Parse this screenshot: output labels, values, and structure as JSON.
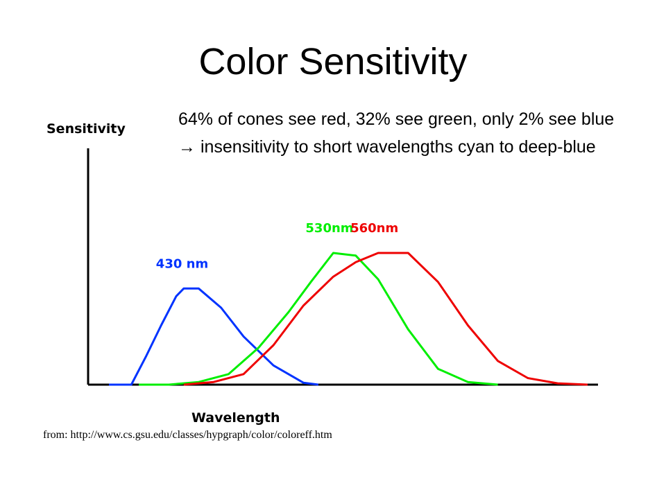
{
  "slide": {
    "title": "Color Sensitivity",
    "bullet_part1": "64% of cones see red, 32% see green, only 2% see blue ",
    "bullet_arrow": "→",
    "bullet_part2": " insensitivity to short wavelengths cyan to deep-blue",
    "source": "from: http://www.cs.gsu.edu/classes/hypgraph/color/coloreff.htm"
  },
  "chart_data": {
    "type": "line",
    "xlabel": "Wavelength",
    "ylabel": "Sensitivity",
    "series": [
      {
        "name": "430 nm",
        "color": "#0033ff",
        "x": [
          380,
          395,
          405,
          415,
          425,
          430,
          440,
          455,
          470,
          490,
          510,
          520
        ],
        "y": [
          0,
          0,
          0.3,
          0.62,
          0.92,
          1.0,
          1.0,
          0.8,
          0.5,
          0.2,
          0.02,
          0
        ]
      },
      {
        "name": "530nm",
        "color": "#00ee00",
        "x": [
          400,
          420,
          440,
          460,
          480,
          500,
          515,
          530,
          545,
          560,
          580,
          600,
          620,
          640
        ],
        "y": [
          0,
          0,
          0.02,
          0.08,
          0.28,
          0.55,
          0.78,
          1.0,
          0.98,
          0.8,
          0.42,
          0.12,
          0.02,
          0
        ]
      },
      {
        "name": "560nm",
        "color": "#ee0000",
        "x": [
          430,
          450,
          470,
          490,
          510,
          530,
          545,
          560,
          580,
          600,
          620,
          640,
          660,
          680,
          700
        ],
        "y": [
          0,
          0.02,
          0.08,
          0.3,
          0.6,
          0.82,
          0.93,
          1.0,
          1.0,
          0.78,
          0.45,
          0.18,
          0.05,
          0.01,
          0
        ]
      }
    ],
    "annotations": [
      "430 nm",
      "530nm",
      "560nm"
    ],
    "grid": false,
    "legend": "none"
  }
}
